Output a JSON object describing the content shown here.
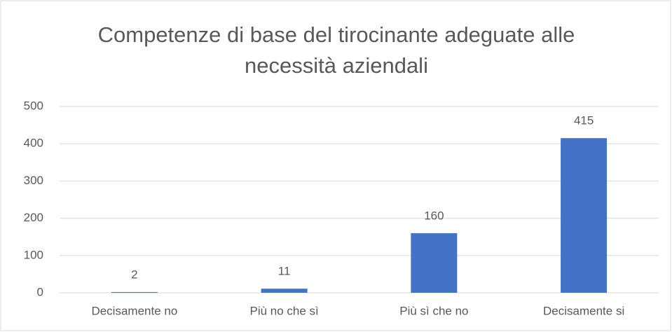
{
  "chart_data": {
    "type": "bar",
    "title": "Competenze di base del tirocinante adeguate alle necessità aziendali",
    "categories": [
      "Decisamente no",
      "Più no che sì",
      "Più sì che no",
      "Decisamente si"
    ],
    "values": [
      2,
      11,
      160,
      415
    ],
    "color": "#4472c4",
    "ylim": [
      0,
      500
    ],
    "yticks": [
      0,
      100,
      200,
      300,
      400,
      500
    ],
    "grid": true
  }
}
